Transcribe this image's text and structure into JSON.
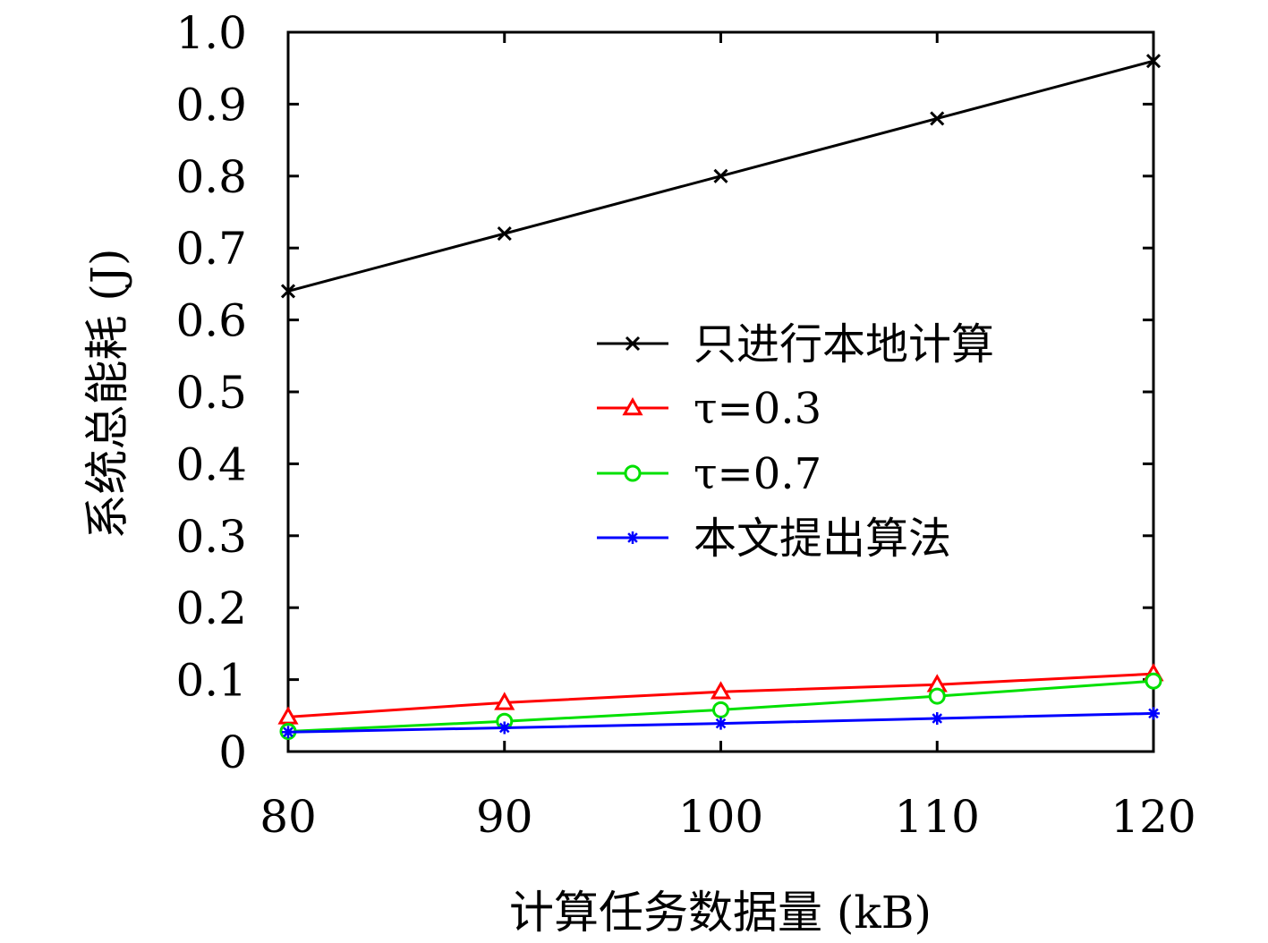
{
  "chart_data": {
    "type": "line",
    "title": "",
    "xlabel": "计算任务数据量 (kB)",
    "ylabel": "系统总能耗 (J)",
    "x": [
      80,
      90,
      100,
      110,
      120
    ],
    "xlim": [
      80,
      120
    ],
    "ylim": [
      0,
      1.0
    ],
    "xticks": [
      80,
      90,
      100,
      110,
      120
    ],
    "xtick_labels": [
      "80",
      "90",
      "100",
      "110",
      "120"
    ],
    "yticks": [
      0,
      0.1,
      0.2,
      0.3,
      0.4,
      0.5,
      0.6,
      0.7,
      0.8,
      0.9,
      1.0
    ],
    "ytick_labels": [
      "0",
      "0.1",
      "0.2",
      "0.3",
      "0.4",
      "0.5",
      "0.6",
      "0.7",
      "0.8",
      "0.9",
      "1.0"
    ],
    "grid": false,
    "legend_position": "right",
    "series": [
      {
        "name": "只进行本地计算",
        "color": "#000000",
        "marker": "x",
        "values": [
          0.64,
          0.72,
          0.8,
          0.88,
          0.96
        ]
      },
      {
        "name": "τ=0.3",
        "color": "#ff0000",
        "marker": "triangle",
        "values": [
          0.048,
          0.068,
          0.083,
          0.093,
          0.108
        ]
      },
      {
        "name": "τ=0.7",
        "color": "#00e000",
        "marker": "circle",
        "values": [
          0.028,
          0.042,
          0.058,
          0.077,
          0.098
        ]
      },
      {
        "name": "本文提出算法",
        "color": "#0000ff",
        "marker": "asterisk",
        "values": [
          0.027,
          0.033,
          0.039,
          0.046,
          0.053
        ]
      }
    ]
  }
}
